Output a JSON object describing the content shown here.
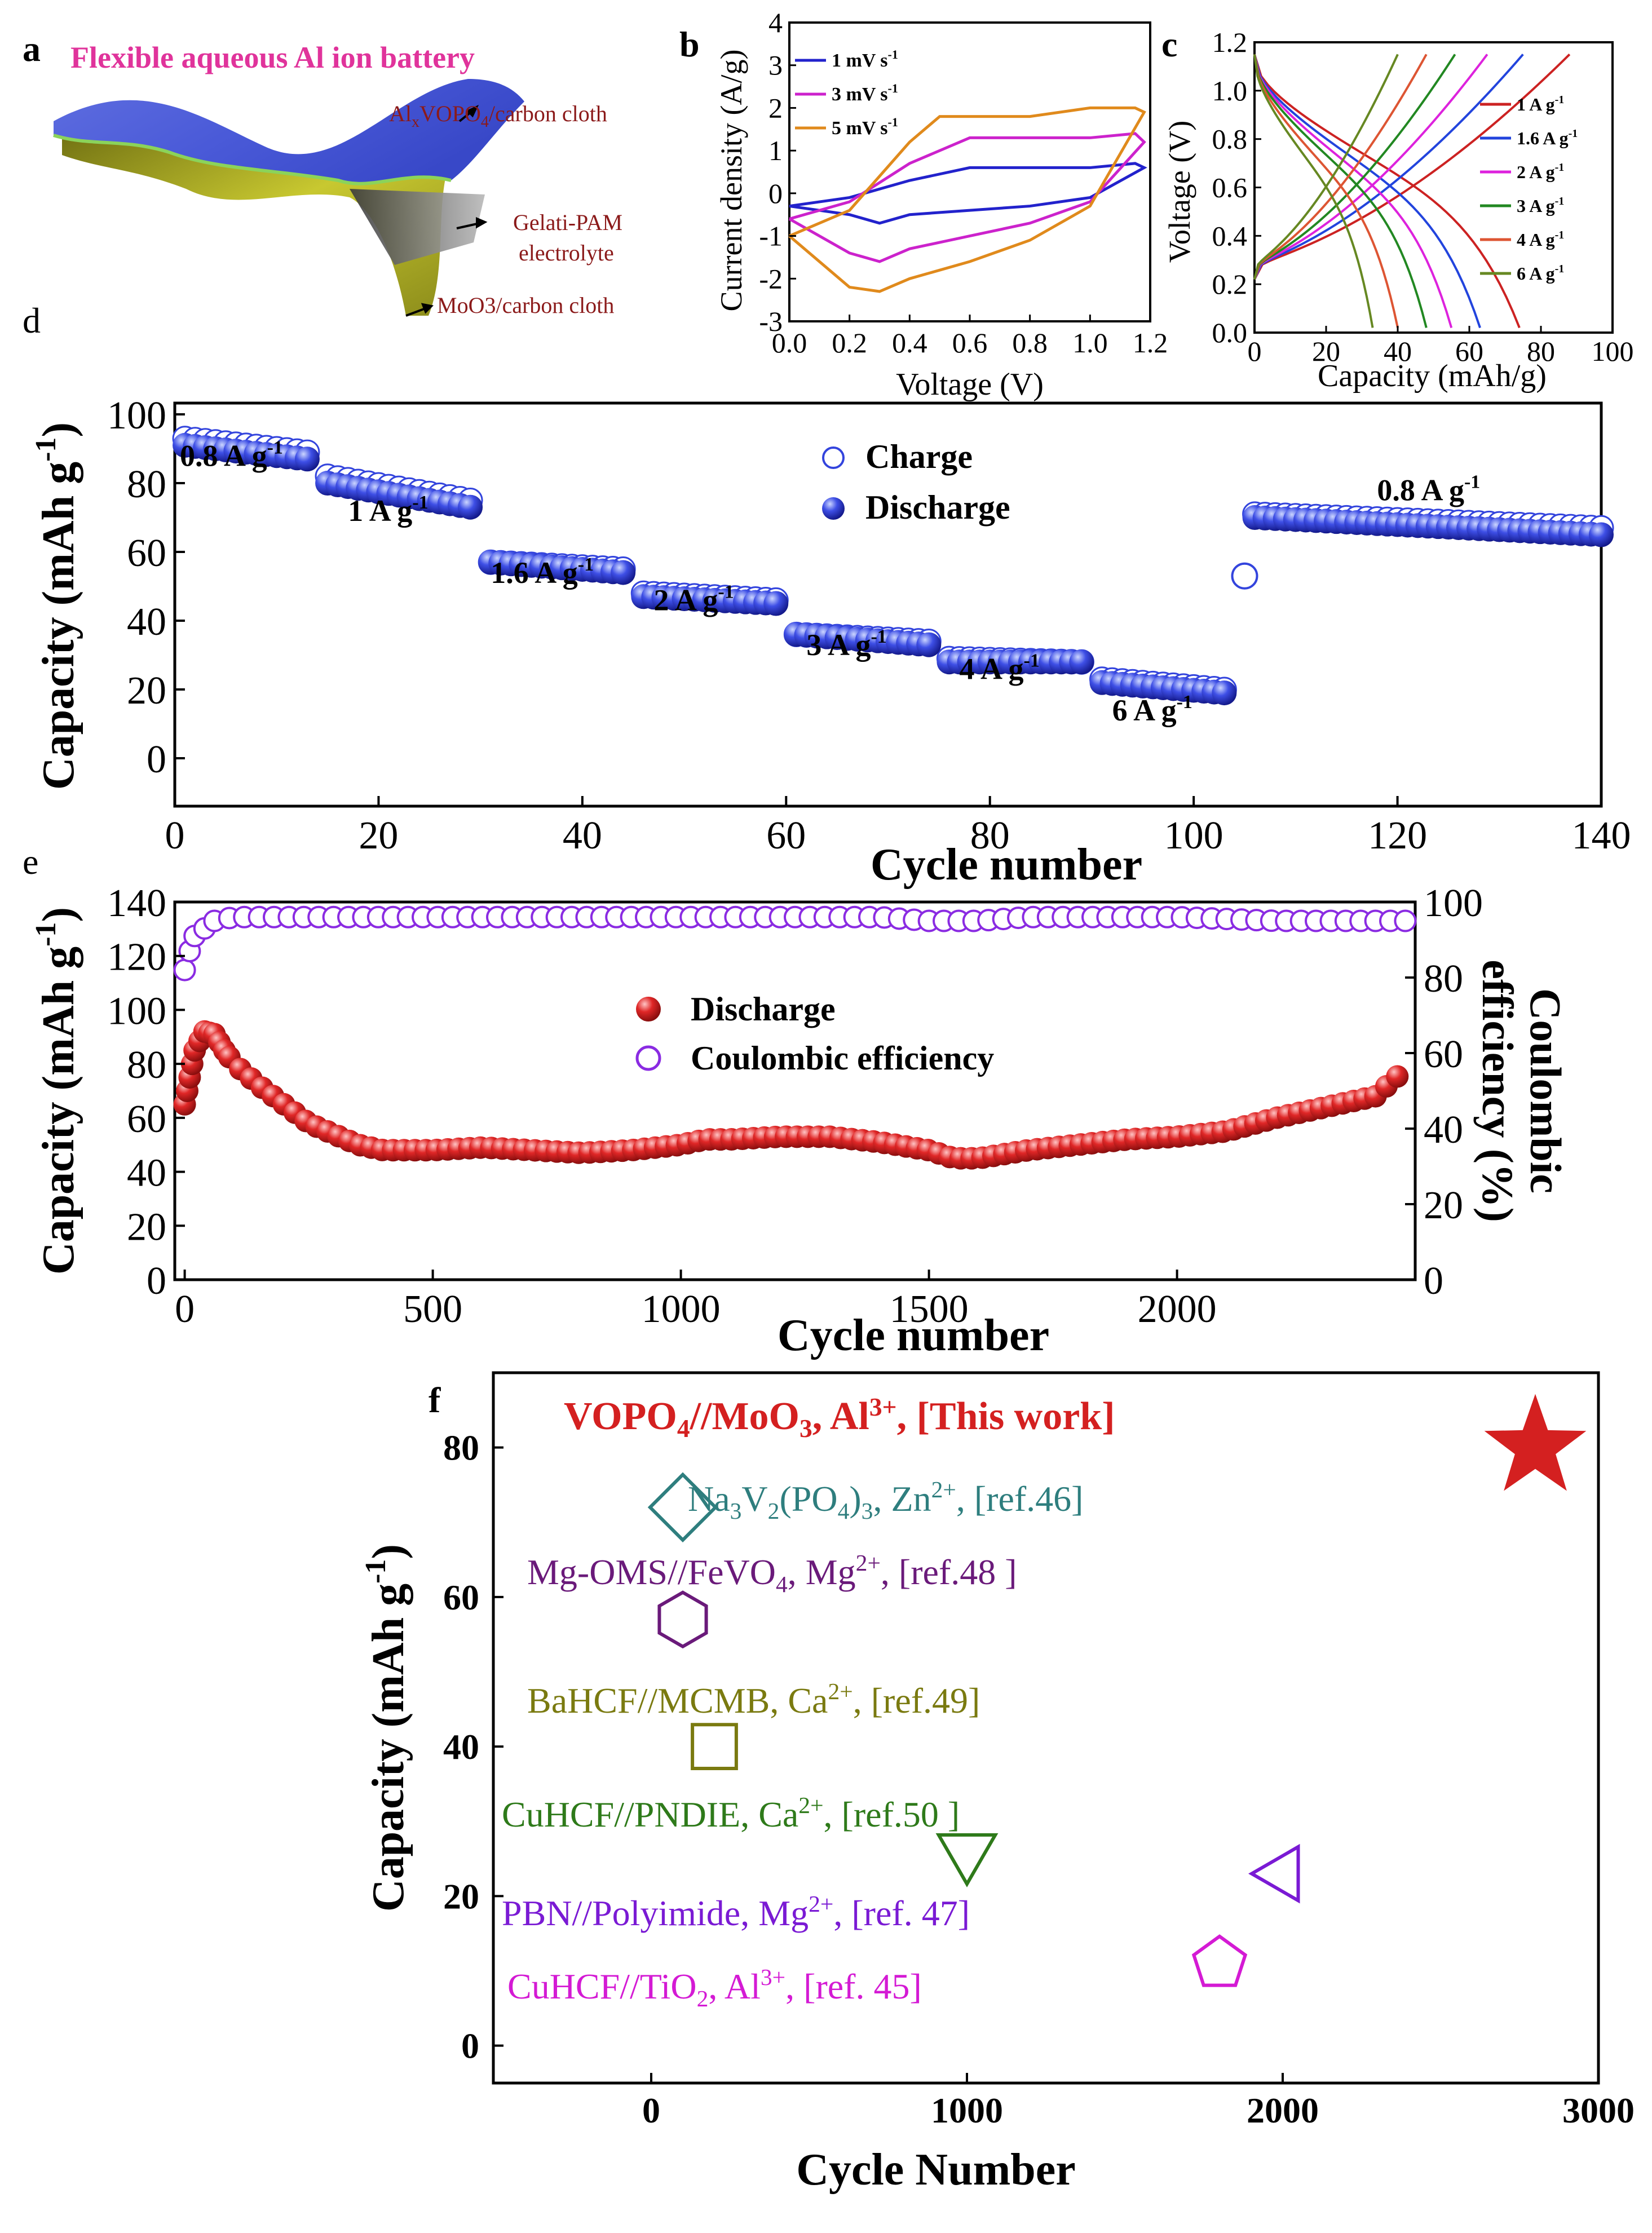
{
  "colors": {
    "axis": "#000000",
    "pink_title": "#e0339b",
    "maroon": "#8b1a1a",
    "blue_ball": "#3344dd",
    "red_ball": "#dd2222",
    "purple": "#8a2be2"
  },
  "panel_a": {
    "letter": "a",
    "title": "Flexible aqueous Al ion battery",
    "label_cathode_pre": "Al",
    "label_cathode_sub": "x",
    "label_cathode_mid": "VOPO",
    "label_cathode_sub2": "4",
    "label_cathode_post": "/carbon cloth",
    "label_electrolyte_1": "Gelati-PAM",
    "label_electrolyte_2": "electrolyte",
    "label_anode": "MoO3/carbon cloth",
    "icon": "flexible-battery-illustration"
  },
  "chart_data": [
    {
      "panel": "b",
      "type": "line",
      "xlabel": "Voltage (V)",
      "ylabel": "Current density (A/g)",
      "xlim": [
        0.0,
        1.2
      ],
      "ylim": [
        -3,
        4
      ],
      "xticks": [
        "0.0",
        "0.2",
        "0.4",
        "0.6",
        "0.8",
        "1.0",
        "1.2"
      ],
      "yticks": [
        "-3",
        "-2",
        "-1",
        "0",
        "1",
        "2",
        "3",
        "4"
      ],
      "legend_position": "top-left",
      "series": [
        {
          "name": "1 mV s⁻¹",
          "color": "#2222cc",
          "upper_x": [
            0.0,
            0.2,
            0.4,
            0.6,
            0.8,
            1.0,
            1.15,
            1.18
          ],
          "upper_y": [
            -0.3,
            -0.1,
            0.3,
            0.6,
            0.6,
            0.6,
            0.7,
            0.6
          ],
          "lower_x": [
            1.18,
            1.0,
            0.8,
            0.6,
            0.4,
            0.3,
            0.2,
            0.0
          ],
          "lower_y": [
            0.6,
            -0.1,
            -0.3,
            -0.4,
            -0.5,
            -0.7,
            -0.5,
            -0.3
          ]
        },
        {
          "name": "3 mV s⁻¹",
          "color": "#cc22cc",
          "upper_x": [
            0.0,
            0.2,
            0.4,
            0.6,
            0.8,
            1.0,
            1.15,
            1.18
          ],
          "upper_y": [
            -0.6,
            -0.2,
            0.7,
            1.3,
            1.3,
            1.3,
            1.4,
            1.2
          ],
          "lower_x": [
            1.18,
            1.0,
            0.8,
            0.6,
            0.4,
            0.3,
            0.2,
            0.0
          ],
          "lower_y": [
            1.2,
            -0.2,
            -0.7,
            -1.0,
            -1.3,
            -1.6,
            -1.4,
            -0.6
          ]
        },
        {
          "name": "5 mV s⁻¹",
          "color": "#e08a1c",
          "upper_x": [
            0.0,
            0.2,
            0.4,
            0.5,
            0.6,
            0.8,
            1.0,
            1.15,
            1.18
          ],
          "upper_y": [
            -1.0,
            -0.4,
            1.2,
            1.8,
            1.8,
            1.8,
            2.0,
            2.0,
            1.9
          ],
          "lower_x": [
            1.18,
            1.0,
            0.8,
            0.6,
            0.4,
            0.3,
            0.2,
            0.0
          ],
          "lower_y": [
            1.9,
            -0.3,
            -1.1,
            -1.6,
            -2.0,
            -2.3,
            -2.2,
            -1.0
          ]
        }
      ]
    },
    {
      "panel": "c",
      "type": "line",
      "xlabel": "Capacity (mAh/g)",
      "ylabel": "Voltage (V)",
      "xlim": [
        0,
        100
      ],
      "ylim": [
        0.0,
        1.2
      ],
      "xticks": [
        "0",
        "20",
        "40",
        "60",
        "80",
        "100"
      ],
      "yticks": [
        "0.0",
        "0.2",
        "0.4",
        "0.6",
        "0.8",
        "1.0",
        "1.2"
      ],
      "legend_position": "right",
      "series": [
        {
          "name": "1 A g⁻¹",
          "color": "#cc2222",
          "charge_max": 88,
          "discharge_max": 74
        },
        {
          "name": "1.6 A g⁻¹",
          "color": "#2244dd",
          "charge_max": 75,
          "discharge_max": 63
        },
        {
          "name": "2 A g⁻¹",
          "color": "#dd22dd",
          "charge_max": 65,
          "discharge_max": 55
        },
        {
          "name": "3 A g⁻¹",
          "color": "#228822",
          "charge_max": 56,
          "discharge_max": 48
        },
        {
          "name": "4 A g⁻¹",
          "color": "#dd5533",
          "charge_max": 48,
          "discharge_max": 40
        },
        {
          "name": "6 A g⁻¹",
          "color": "#668822",
          "charge_max": 40,
          "discharge_max": 33
        }
      ]
    },
    {
      "panel": "d",
      "type": "scatter",
      "xlabel": "Cycle number",
      "ylabel": "Capacity (mAh g⁻¹)",
      "xlim": [
        0,
        140
      ],
      "ylim": [
        -12,
        100
      ],
      "xticks": [
        "0",
        "20",
        "40",
        "60",
        "80",
        "100",
        "120",
        "140"
      ],
      "yticks": [
        "0",
        "20",
        "40",
        "60",
        "80",
        "100"
      ],
      "legend": [
        "Charge",
        "Discharge"
      ],
      "legend_position": "top-center",
      "rate_labels": [
        "0.8 A g⁻¹",
        "1 A g⁻¹",
        "1.6 A g⁻¹",
        "2 A g⁻¹",
        "3 A g⁻¹",
        "4 A g⁻¹",
        "6 A g⁻¹",
        "0.8 A g⁻¹"
      ],
      "segments": [
        {
          "x_start": 1,
          "x_end": 13,
          "charge_start": 93,
          "charge_end": 89,
          "discharge_start": 91,
          "discharge_end": 87
        },
        {
          "x_start": 15,
          "x_end": 29,
          "charge_start": 82,
          "charge_end": 75,
          "discharge_start": 80,
          "discharge_end": 73
        },
        {
          "x_start": 31,
          "x_end": 44,
          "charge_start": 57,
          "charge_end": 55,
          "discharge_start": 57,
          "discharge_end": 54
        },
        {
          "x_start": 46,
          "x_end": 59,
          "charge_start": 48,
          "charge_end": 46,
          "discharge_start": 47,
          "discharge_end": 45
        },
        {
          "x_start": 61,
          "x_end": 74,
          "charge_start": 36,
          "charge_end": 34,
          "discharge_start": 36,
          "discharge_end": 33
        },
        {
          "x_start": 76,
          "x_end": 89,
          "charge_start": 29,
          "charge_end": 28,
          "discharge_start": 28,
          "discharge_end": 28
        },
        {
          "x_start": 91,
          "x_end": 103,
          "charge_start": 23,
          "charge_end": 20,
          "discharge_start": 22,
          "discharge_end": 19
        },
        {
          "x_start": 106,
          "x_end": 140,
          "charge_start": 71,
          "charge_end": 67,
          "discharge_start": 70,
          "discharge_end": 65
        }
      ],
      "outlier_charge": {
        "x": 105,
        "y": 53
      }
    },
    {
      "panel": "e",
      "type": "scatter",
      "xlabel": "Cycle number",
      "ylabel": "Capacity (mAh g⁻¹)",
      "y2label": "Coulombic efficiency (%)",
      "xlim": [
        -20,
        2480
      ],
      "ylim": [
        0,
        140
      ],
      "y2lim": [
        0,
        100
      ],
      "xticks": [
        "0",
        "500",
        "1000",
        "1500",
        "2000"
      ],
      "yticks": [
        "0",
        "20",
        "40",
        "60",
        "80",
        "100",
        "120",
        "140"
      ],
      "y2ticks": [
        "0",
        "20",
        "40",
        "60",
        "80",
        "100"
      ],
      "legend": [
        "Discharge",
        "Coulombic efficiency"
      ],
      "legend_position": "center",
      "discharge_x": [
        0,
        10,
        20,
        40,
        60,
        80,
        100,
        150,
        200,
        250,
        300,
        350,
        400,
        500,
        600,
        700,
        800,
        900,
        1000,
        1050,
        1100,
        1200,
        1300,
        1400,
        1500,
        1550,
        1600,
        1700,
        1800,
        1900,
        2000,
        2100,
        2200,
        2300,
        2400,
        2460
      ],
      "discharge_y": [
        65,
        75,
        85,
        92,
        91,
        85,
        80,
        72,
        65,
        58,
        54,
        50,
        48,
        48,
        49,
        48,
        47,
        48,
        50,
        52,
        52,
        53,
        53,
        51,
        48,
        45,
        45,
        48,
        50,
        52,
        53,
        55,
        60,
        64,
        68,
        78
      ],
      "ce_x": [
        0,
        10,
        20,
        40,
        60,
        100,
        150,
        200,
        300,
        400,
        500,
        600,
        800,
        1000,
        1200,
        1400,
        1500,
        1600,
        1700,
        1800,
        2000,
        2200,
        2400,
        2460
      ],
      "ce_y": [
        82,
        87,
        91,
        93,
        95,
        96,
        96,
        96,
        96,
        96,
        96,
        96,
        96,
        96,
        96,
        96,
        95,
        95,
        96,
        96,
        96,
        95,
        95,
        95
      ]
    },
    {
      "panel": "f",
      "type": "scatter",
      "xlabel": "Cycle Number",
      "ylabel": "Capacity (mAh g⁻¹)",
      "xlim": [
        -500,
        3000
      ],
      "ylim": [
        -5,
        90
      ],
      "xticks": [
        "0",
        "1000",
        "2000",
        "3000"
      ],
      "yticks": [
        "0",
        "20",
        "40",
        "60",
        "80"
      ],
      "points": [
        {
          "x": 2800,
          "y": 80,
          "marker": "star",
          "color": "#d42020"
        },
        {
          "x": 100,
          "y": 72,
          "marker": "diamond",
          "color": "#2e7e7e"
        },
        {
          "x": 100,
          "y": 57,
          "marker": "hexagon",
          "color": "#6a1a7a"
        },
        {
          "x": 200,
          "y": 40,
          "marker": "square",
          "color": "#7a7a10"
        },
        {
          "x": 1000,
          "y": 26,
          "marker": "triangle-down",
          "color": "#2e7a1a"
        },
        {
          "x": 2000,
          "y": 23,
          "marker": "triangle-left",
          "color": "#7a1ad4"
        },
        {
          "x": 1800,
          "y": 11,
          "marker": "pentagon",
          "color": "#d41ad4"
        }
      ]
    }
  ],
  "panel_b": {
    "letter": "b",
    "legend_1": "1 mV s",
    "legend_2": "3 mV s",
    "legend_3": "5 mV s",
    "legend_sup": "-1"
  },
  "panel_c": {
    "letter": "c",
    "legend_1": "1 A g",
    "legend_2": "1.6 A g",
    "legend_3": "2 A g",
    "legend_4": "3 A g",
    "legend_5": "4 A g",
    "legend_6": "6 A g",
    "legend_sup": "-1"
  },
  "panel_d": {
    "letter": "d",
    "ylabel_main": "Capacity (mAh g",
    "ylabel_sup": "-1",
    "ylabel_end": ")",
    "legend_charge": "Charge",
    "legend_discharge": "Discharge",
    "rate_main": [
      "0.8 A g",
      "1 A g",
      "1.6 A g",
      "2 A g",
      "3 A g",
      "4 A g",
      "6 A g",
      "0.8 A g"
    ],
    "rate_sup": "-1"
  },
  "panel_e": {
    "letter": "e",
    "ylabel_main": "Capacity (mAh g",
    "ylabel_sup": "-1",
    "ylabel_end": ")",
    "y2label_1": "Coulombic",
    "y2label_2": "efficiency (%)",
    "legend_discharge": "Discharge",
    "legend_ce": "Coulombic efficiency"
  },
  "panel_f": {
    "letter": "f",
    "ylabel_main": "Capacity (mAh g",
    "ylabel_sup": "-1",
    "ylabel_end": ")",
    "labels": [
      {
        "parts": [
          [
            "VOPO",
            ""
          ],
          [
            "4",
            "sub"
          ],
          [
            "//MoO",
            ""
          ],
          [
            "3",
            "sub"
          ],
          [
            ", Al",
            ""
          ],
          [
            "3+",
            "sup"
          ],
          [
            ", [This work]",
            ""
          ]
        ]
      },
      {
        "parts": [
          [
            "Na",
            ""
          ],
          [
            "3",
            "sub"
          ],
          [
            "V",
            ""
          ],
          [
            "2",
            "sub"
          ],
          [
            "(PO",
            ""
          ],
          [
            "4",
            "sub"
          ],
          [
            ")",
            ""
          ],
          [
            "3",
            "sub"
          ],
          [
            ", Zn",
            ""
          ],
          [
            "2+",
            "sup"
          ],
          [
            ", [ref.46]",
            ""
          ]
        ]
      },
      {
        "parts": [
          [
            "Mg-OMS//FeVO",
            ""
          ],
          [
            "4",
            "sub"
          ],
          [
            ", Mg",
            ""
          ],
          [
            "2+",
            "sup"
          ],
          [
            ", [ref.48 ]",
            ""
          ]
        ]
      },
      {
        "parts": [
          [
            "BaHCF//MCMB, Ca",
            ""
          ],
          [
            "2+",
            "sup"
          ],
          [
            ", [ref.49]",
            ""
          ]
        ]
      },
      {
        "parts": [
          [
            "CuHCF//PNDIE, Ca",
            ""
          ],
          [
            "2+",
            "sup"
          ],
          [
            ", [ref.50 ]",
            ""
          ]
        ]
      },
      {
        "parts": [
          [
            "PBN//Polyimide, Mg",
            ""
          ],
          [
            "2+",
            "sup"
          ],
          [
            ", [ref. 47]",
            ""
          ]
        ]
      },
      {
        "parts": [
          [
            "CuHCF//TiO",
            ""
          ],
          [
            "2",
            "sub"
          ],
          [
            ", Al",
            ""
          ],
          [
            "3+",
            "sup"
          ],
          [
            ", [ref. 45]",
            ""
          ]
        ]
      }
    ]
  }
}
